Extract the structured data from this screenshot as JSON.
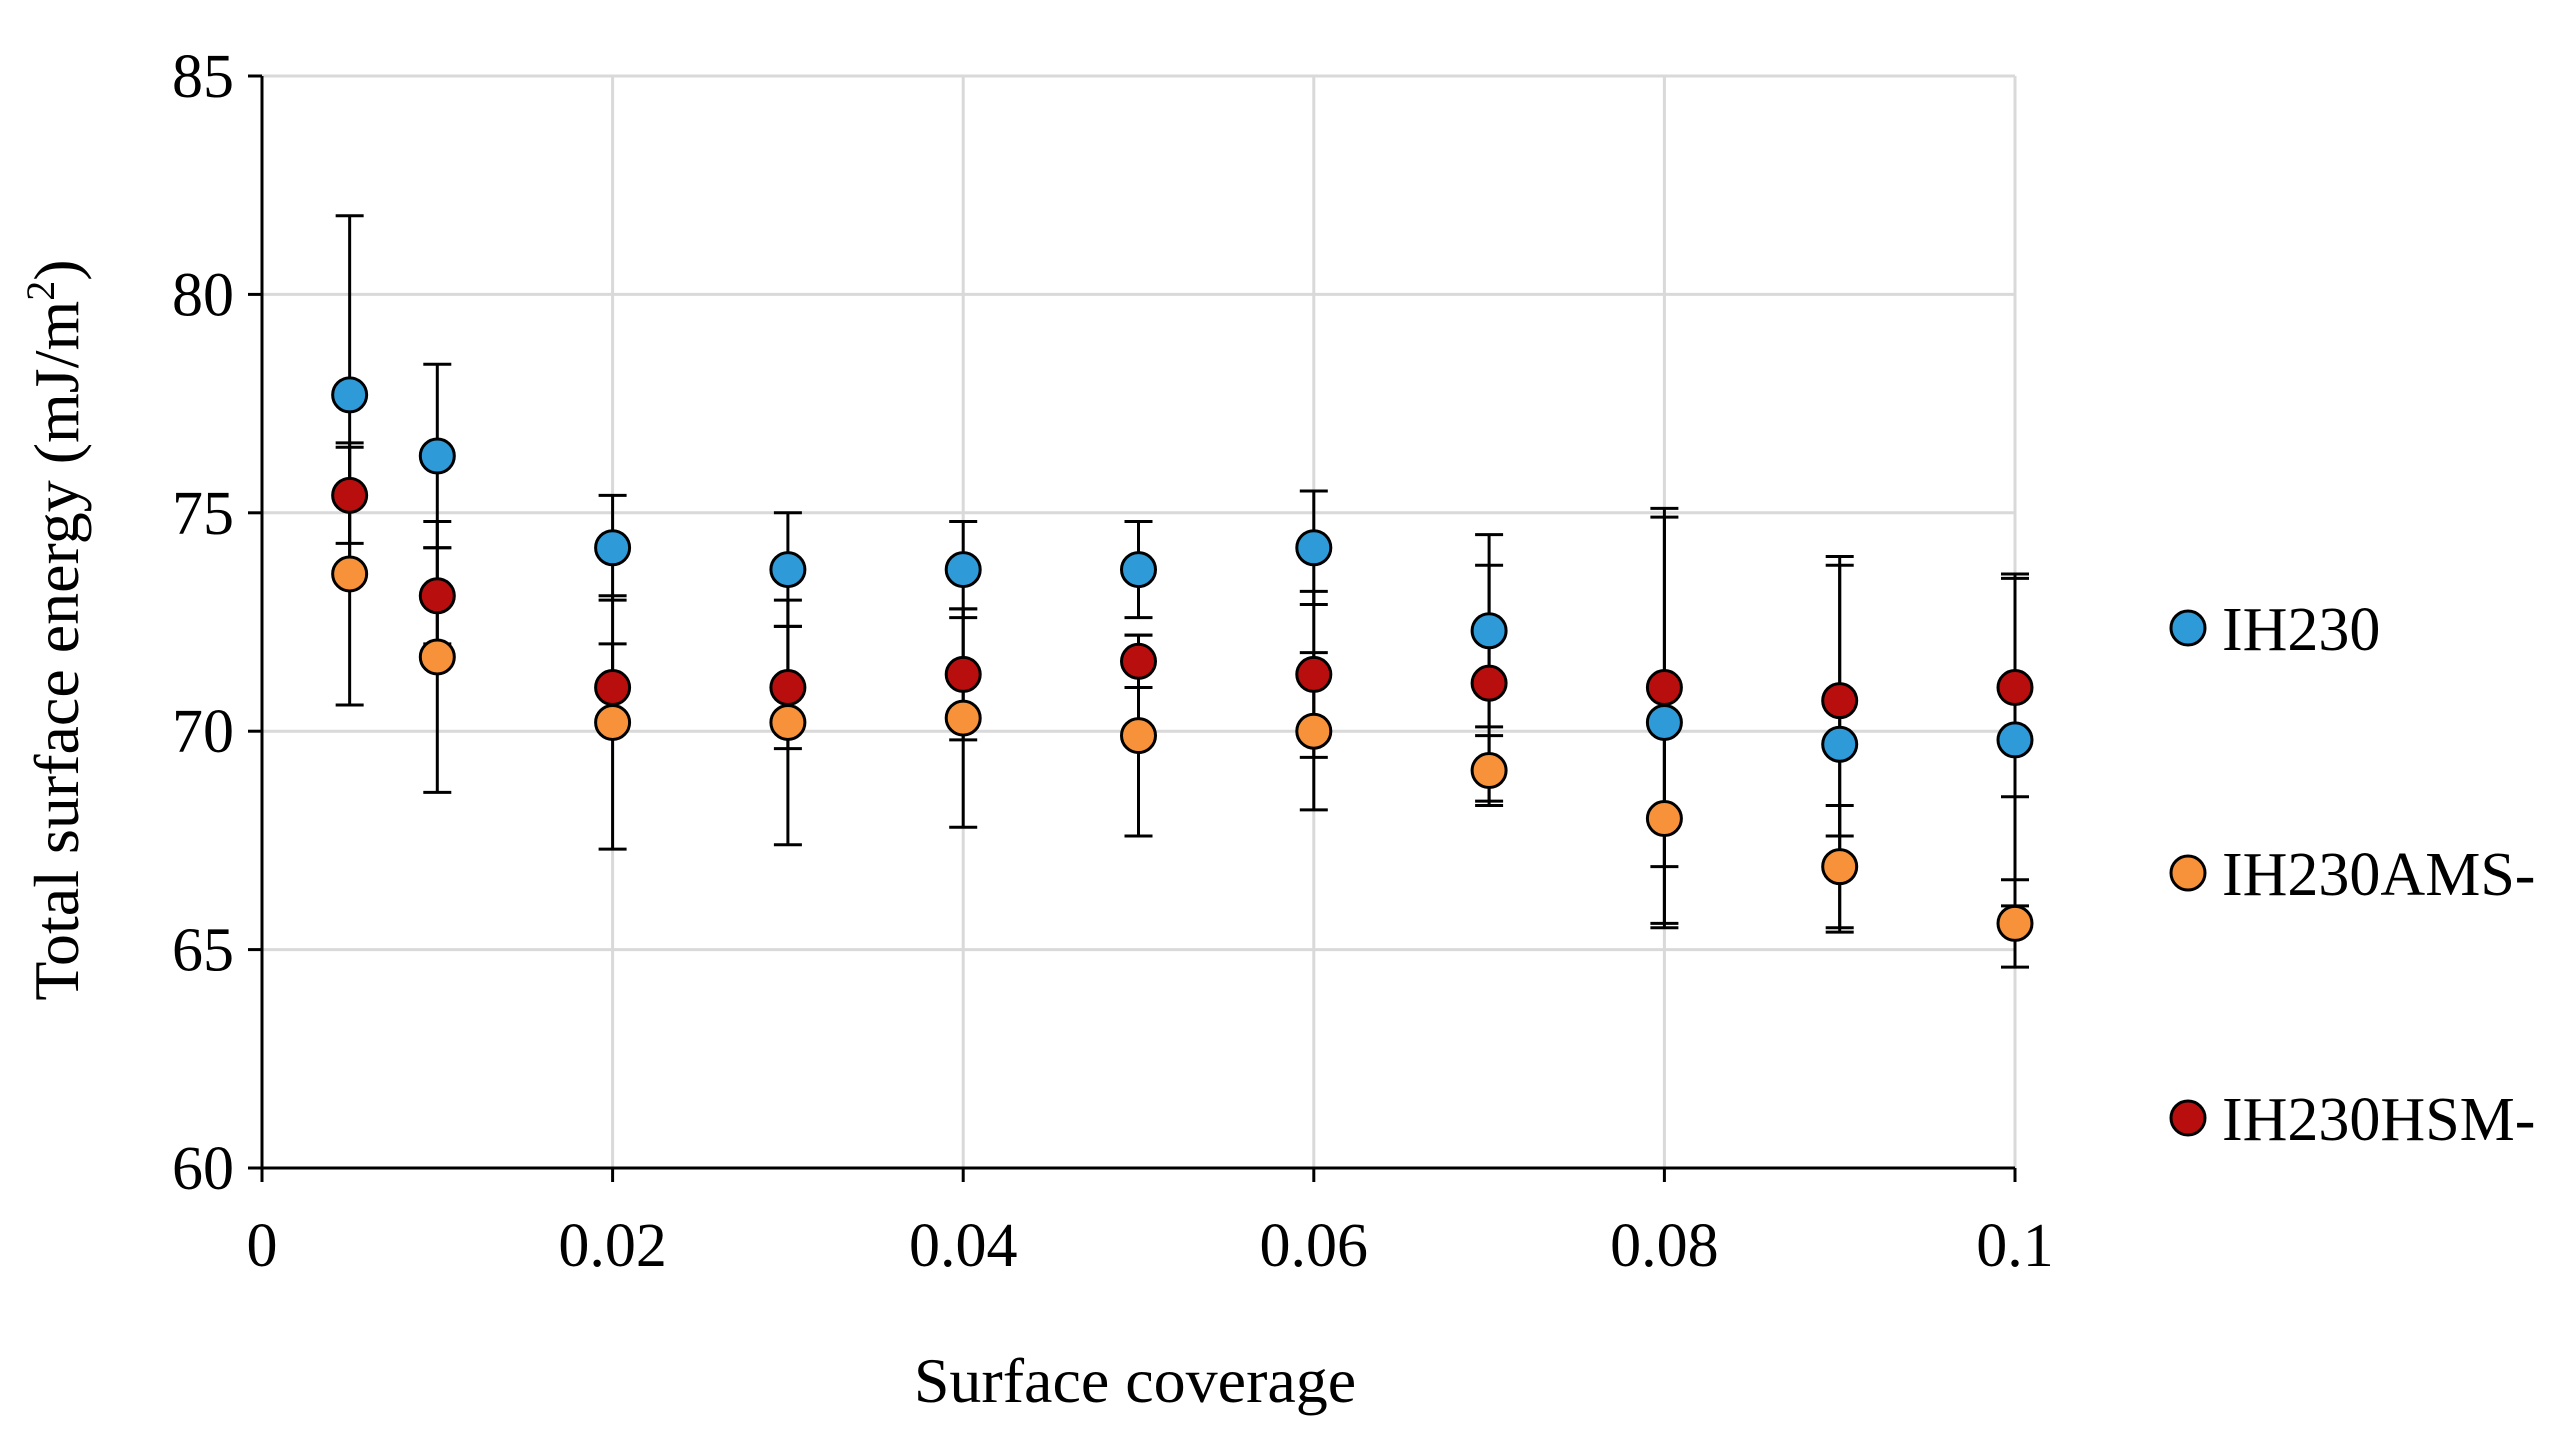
{
  "chart_data": {
    "type": "scatter",
    "title": "",
    "xlabel": "Surface coverage",
    "ylabel": "Total surface energy (mJ/m²)",
    "ylabel_main": "Total surface energy (mJ/m",
    "ylabel_sup": "2",
    "ylabel_close": ")",
    "xlim": [
      0,
      0.1
    ],
    "ylim": [
      60,
      85
    ],
    "xticks": [
      0,
      0.02,
      0.04,
      0.06,
      0.08,
      0.1
    ],
    "xtick_labels": [
      "0",
      "0.02",
      "0.04",
      "0.06",
      "0.08",
      "0.1"
    ],
    "yticks": [
      60,
      65,
      70,
      75,
      80,
      85
    ],
    "ytick_labels": [
      "60",
      "65",
      "70",
      "75",
      "80",
      "85"
    ],
    "grid": true,
    "legend_position": "right",
    "series": [
      {
        "name": "IH230",
        "color": "#2E9AD8",
        "x": [
          0.005,
          0.01,
          0.02,
          0.03,
          0.04,
          0.05,
          0.06,
          0.07,
          0.08,
          0.09,
          0.1
        ],
        "y": [
          77.7,
          76.3,
          74.2,
          73.7,
          73.7,
          73.7,
          74.2,
          72.3,
          70.2,
          69.7,
          69.8
        ],
        "err": [
          4.1,
          2.1,
          1.2,
          1.3,
          1.1,
          1.1,
          1.3,
          2.2,
          4.7,
          4.3,
          3.8
        ]
      },
      {
        "name": "IH230AMS-",
        "color": "#F7923A",
        "x": [
          0.005,
          0.01,
          0.02,
          0.03,
          0.04,
          0.05,
          0.06,
          0.07,
          0.08,
          0.09,
          0.1
        ],
        "y": [
          73.6,
          71.7,
          70.2,
          70.2,
          70.3,
          69.9,
          70.0,
          69.1,
          68.0,
          66.9,
          65.6
        ],
        "err": [
          3.0,
          3.1,
          2.9,
          2.8,
          2.5,
          2.3,
          1.8,
          0.8,
          2.4,
          1.4,
          1.0
        ]
      },
      {
        "name": "IH230HSM-",
        "color": "#B80F0E",
        "x": [
          0.005,
          0.01,
          0.02,
          0.03,
          0.04,
          0.05,
          0.06,
          0.07,
          0.08,
          0.09,
          0.1
        ],
        "y": [
          75.4,
          73.1,
          71.0,
          71.0,
          71.3,
          71.6,
          71.3,
          71.1,
          71.0,
          70.7,
          71.0
        ],
        "err": [
          1.1,
          1.1,
          1.0,
          1.4,
          1.5,
          0.6,
          1.9,
          2.7,
          4.1,
          3.1,
          2.5
        ]
      }
    ]
  }
}
